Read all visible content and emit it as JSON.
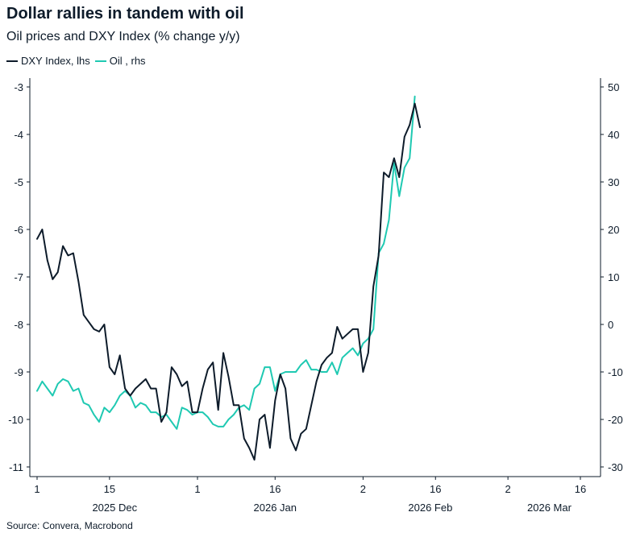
{
  "title": "Dollar rallies in tandem with oil",
  "subtitle": "Oil prices and DXY Index (% change y/y)",
  "source": "Source: Convera, Macrobond",
  "colors": {
    "dxy": "#0d1b2a",
    "oil": "#1fc9b2",
    "axis": "#0d1b2a"
  },
  "chart_data": {
    "type": "line",
    "title": "Dollar rallies in tandem with oil",
    "subtitle": "Oil prices and DXY Index (% change y/y)",
    "x_start": "2025-12-01",
    "x_end": "2026-03-16",
    "x_ticks": [
      {
        "date": "2025-12-01",
        "label": "1"
      },
      {
        "date": "2025-12-15",
        "label": "15"
      },
      {
        "date": "2026-01-01",
        "label": "1"
      },
      {
        "date": "2026-01-16",
        "label": "16"
      },
      {
        "date": "2026-02-02",
        "label": "2"
      },
      {
        "date": "2026-02-16",
        "label": "16"
      },
      {
        "date": "2026-03-02",
        "label": "2"
      },
      {
        "date": "2026-03-16",
        "label": "16"
      }
    ],
    "month_labels": [
      {
        "date": "2025-12-16",
        "label": "2025 Dec"
      },
      {
        "date": "2026-01-16",
        "label": "2026 Jan"
      },
      {
        "date": "2026-02-15",
        "label": "2026 Feb"
      },
      {
        "date": "2026-03-10",
        "label": "2026 Mar"
      }
    ],
    "y_left": {
      "min": -11,
      "max": -3,
      "ticks": [
        -11,
        -10,
        -9,
        -8,
        -7,
        -6,
        -5,
        -4,
        -3
      ]
    },
    "y_right": {
      "min": -30,
      "max": 50,
      "ticks": [
        -30,
        -20,
        -10,
        0,
        10,
        20,
        30,
        40,
        50
      ]
    },
    "legend_position": "top-left",
    "series": [
      {
        "name": "DXY Index, lhs",
        "axis": "left",
        "points": [
          [
            "2025-12-01",
            -6.2
          ],
          [
            "2025-12-02",
            -6.0
          ],
          [
            "2025-12-03",
            -6.65
          ],
          [
            "2025-12-04",
            -7.05
          ],
          [
            "2025-12-05",
            -6.9
          ],
          [
            "2025-12-06",
            -6.35
          ],
          [
            "2025-12-07",
            -6.55
          ],
          [
            "2025-12-08",
            -6.5
          ],
          [
            "2025-12-09",
            -7.1
          ],
          [
            "2025-12-10",
            -7.8
          ],
          [
            "2025-12-11",
            -7.95
          ],
          [
            "2025-12-12",
            -8.1
          ],
          [
            "2025-12-13",
            -8.15
          ],
          [
            "2025-12-14",
            -8.0
          ],
          [
            "2025-12-15",
            -8.9
          ],
          [
            "2025-12-16",
            -9.05
          ],
          [
            "2025-12-17",
            -8.65
          ],
          [
            "2025-12-18",
            -9.35
          ],
          [
            "2025-12-19",
            -9.5
          ],
          [
            "2025-12-20",
            -9.35
          ],
          [
            "2025-12-21",
            -9.25
          ],
          [
            "2025-12-22",
            -9.15
          ],
          [
            "2025-12-23",
            -9.35
          ],
          [
            "2025-12-24",
            -9.35
          ],
          [
            "2025-12-25",
            -10.05
          ],
          [
            "2025-12-26",
            -9.85
          ],
          [
            "2025-12-27",
            -8.9
          ],
          [
            "2025-12-28",
            -9.05
          ],
          [
            "2025-12-29",
            -9.3
          ],
          [
            "2025-12-30",
            -9.2
          ],
          [
            "2025-12-31",
            -9.85
          ],
          [
            "2026-01-01",
            -9.85
          ],
          [
            "2026-01-02",
            -9.35
          ],
          [
            "2026-01-03",
            -8.95
          ],
          [
            "2026-01-04",
            -8.8
          ],
          [
            "2026-01-05",
            -9.8
          ],
          [
            "2026-01-06",
            -8.6
          ],
          [
            "2026-01-07",
            -9.1
          ],
          [
            "2026-01-08",
            -9.7
          ],
          [
            "2026-01-09",
            -9.7
          ],
          [
            "2026-01-10",
            -10.4
          ],
          [
            "2026-01-11",
            -10.6
          ],
          [
            "2026-01-12",
            -10.85
          ],
          [
            "2026-01-13",
            -10.0
          ],
          [
            "2026-01-14",
            -9.9
          ],
          [
            "2026-01-15",
            -10.6
          ],
          [
            "2026-01-16",
            -9.6
          ],
          [
            "2026-01-17",
            -9.05
          ],
          [
            "2026-01-18",
            -9.35
          ],
          [
            "2026-01-19",
            -10.4
          ],
          [
            "2026-01-20",
            -10.65
          ],
          [
            "2026-01-21",
            -10.3
          ],
          [
            "2026-01-22",
            -10.2
          ],
          [
            "2026-01-23",
            -9.7
          ],
          [
            "2026-01-24",
            -9.2
          ],
          [
            "2026-01-25",
            -8.85
          ],
          [
            "2026-01-26",
            -8.7
          ],
          [
            "2026-01-27",
            -8.6
          ],
          [
            "2026-01-28",
            -8.05
          ],
          [
            "2026-01-29",
            -8.3
          ],
          [
            "2026-01-30",
            -8.2
          ],
          [
            "2026-01-31",
            -8.1
          ],
          [
            "2026-02-01",
            -8.1
          ],
          [
            "2026-02-02",
            -9.0
          ],
          [
            "2026-02-03",
            -8.6
          ],
          [
            "2026-02-04",
            -7.2
          ],
          [
            "2026-02-05",
            -6.55
          ],
          [
            "2026-02-06",
            -4.8
          ],
          [
            "2026-02-07",
            -4.9
          ],
          [
            "2026-02-08",
            -4.5
          ],
          [
            "2026-02-09",
            -4.9
          ],
          [
            "2026-02-10",
            -4.05
          ],
          [
            "2026-02-11",
            -3.8
          ],
          [
            "2026-02-12",
            -3.35
          ],
          [
            "2026-02-13",
            -3.85
          ]
        ]
      },
      {
        "name": "Oil , rhs",
        "axis": "right",
        "points": [
          [
            "2025-12-01",
            -14.0
          ],
          [
            "2025-12-02",
            -12.0
          ],
          [
            "2025-12-03",
            -13.5
          ],
          [
            "2025-12-04",
            -15.0
          ],
          [
            "2025-12-05",
            -12.5
          ],
          [
            "2025-12-06",
            -11.5
          ],
          [
            "2025-12-07",
            -12.0
          ],
          [
            "2025-12-08",
            -14.0
          ],
          [
            "2025-12-09",
            -13.5
          ],
          [
            "2025-12-10",
            -16.5
          ],
          [
            "2025-12-11",
            -17.0
          ],
          [
            "2025-12-12",
            -19.0
          ],
          [
            "2025-12-13",
            -20.5
          ],
          [
            "2025-12-14",
            -17.5
          ],
          [
            "2025-12-15",
            -18.5
          ],
          [
            "2025-12-16",
            -17.0
          ],
          [
            "2025-12-17",
            -15.0
          ],
          [
            "2025-12-18",
            -14.0
          ],
          [
            "2025-12-19",
            -15.0
          ],
          [
            "2025-12-20",
            -17.5
          ],
          [
            "2025-12-21",
            -16.5
          ],
          [
            "2025-12-22",
            -17.0
          ],
          [
            "2025-12-23",
            -18.5
          ],
          [
            "2025-12-24",
            -18.5
          ],
          [
            "2025-12-25",
            -19.5
          ],
          [
            "2025-12-26",
            -19.0
          ],
          [
            "2025-12-27",
            -20.5
          ],
          [
            "2025-12-28",
            -22.0
          ],
          [
            "2025-12-29",
            -17.5
          ],
          [
            "2025-12-30",
            -18.0
          ],
          [
            "2025-12-31",
            -19.0
          ],
          [
            "2026-01-01",
            -18.5
          ],
          [
            "2026-01-02",
            -18.5
          ],
          [
            "2026-01-03",
            -19.5
          ],
          [
            "2026-01-04",
            -21.0
          ],
          [
            "2026-01-05",
            -21.5
          ],
          [
            "2026-01-06",
            -21.5
          ],
          [
            "2026-01-07",
            -20.0
          ],
          [
            "2026-01-08",
            -19.0
          ],
          [
            "2026-01-09",
            -17.5
          ],
          [
            "2026-01-10",
            -17.0
          ],
          [
            "2026-01-11",
            -18.0
          ],
          [
            "2026-01-12",
            -13.5
          ],
          [
            "2026-01-13",
            -12.5
          ],
          [
            "2026-01-14",
            -9.0
          ],
          [
            "2026-01-15",
            -9.0
          ],
          [
            "2026-01-16",
            -14.0
          ],
          [
            "2026-01-17",
            -10.5
          ],
          [
            "2026-01-18",
            -10.0
          ],
          [
            "2026-01-19",
            -10.0
          ],
          [
            "2026-01-20",
            -10.0
          ],
          [
            "2026-01-21",
            -8.5
          ],
          [
            "2026-01-22",
            -7.5
          ],
          [
            "2026-01-23",
            -9.5
          ],
          [
            "2026-01-24",
            -9.5
          ],
          [
            "2026-01-25",
            -10.0
          ],
          [
            "2026-01-26",
            -10.0
          ],
          [
            "2026-01-27",
            -8.0
          ],
          [
            "2026-01-28",
            -10.5
          ],
          [
            "2026-01-29",
            -7.0
          ],
          [
            "2026-01-30",
            -6.0
          ],
          [
            "2026-01-31",
            -5.0
          ],
          [
            "2026-02-01",
            -6.5
          ],
          [
            "2026-02-02",
            -4.0
          ],
          [
            "2026-02-03",
            -3.0
          ],
          [
            "2026-02-04",
            -1.0
          ],
          [
            "2026-02-05",
            15.0
          ],
          [
            "2026-02-06",
            17.0
          ],
          [
            "2026-02-07",
            22.0
          ],
          [
            "2026-02-08",
            34.0
          ],
          [
            "2026-02-09",
            27.0
          ],
          [
            "2026-02-10",
            33.0
          ],
          [
            "2026-02-11",
            35.0
          ],
          [
            "2026-02-12",
            48.0
          ]
        ]
      }
    ]
  }
}
